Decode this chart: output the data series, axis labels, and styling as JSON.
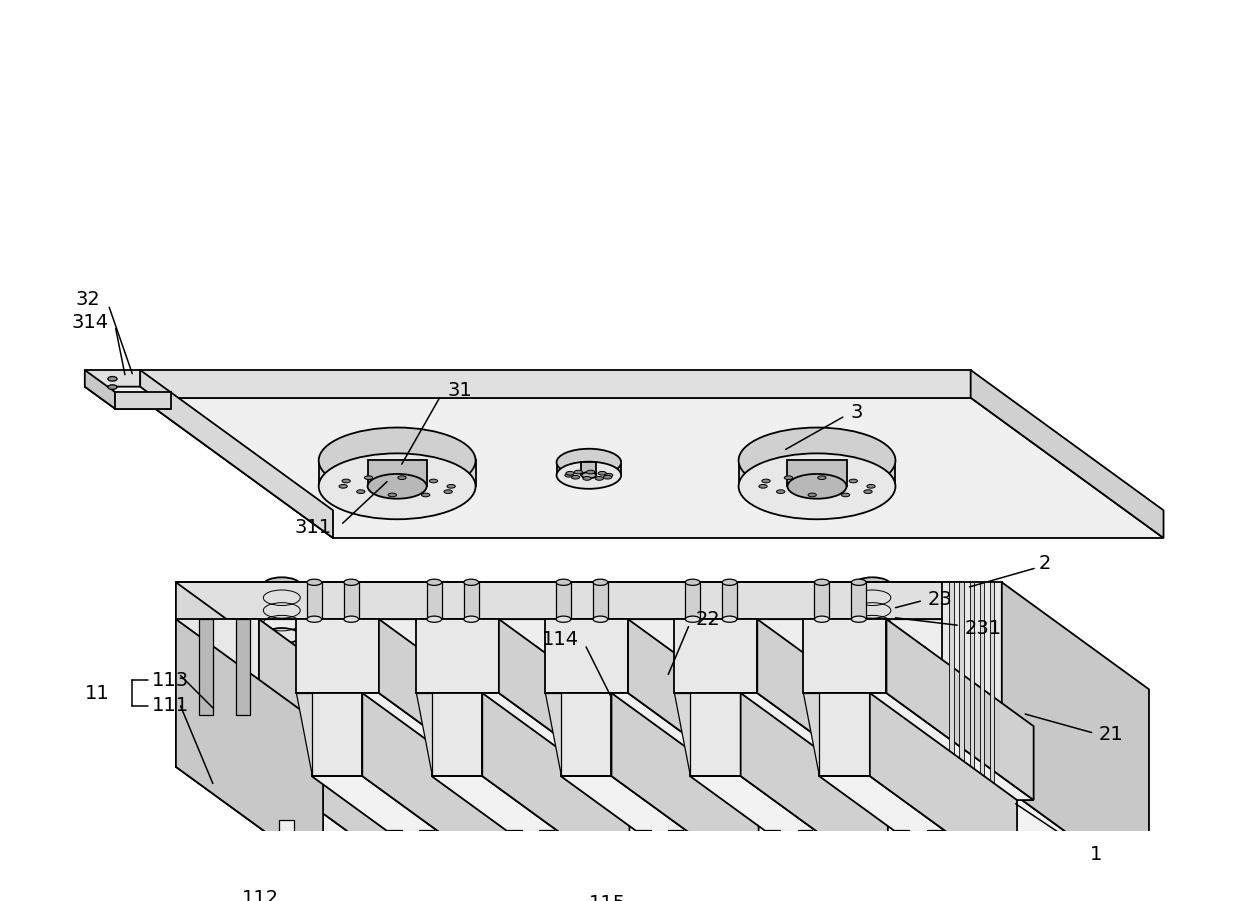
{
  "bg_color": "#ffffff",
  "lc": "#000000",
  "face_top": "#f2f2f2",
  "face_front": "#e0e0e0",
  "face_right": "#c8c8c8",
  "face_dark": "#b0b0b0",
  "bolt_black": "#1a1a1a",
  "bolt_white": "#f0f0f0",
  "hole_gray": "#c0c0c0",
  "lw": 1.3,
  "lw_thin": 0.9,
  "lw_annot": 1.1,
  "fs": 14
}
